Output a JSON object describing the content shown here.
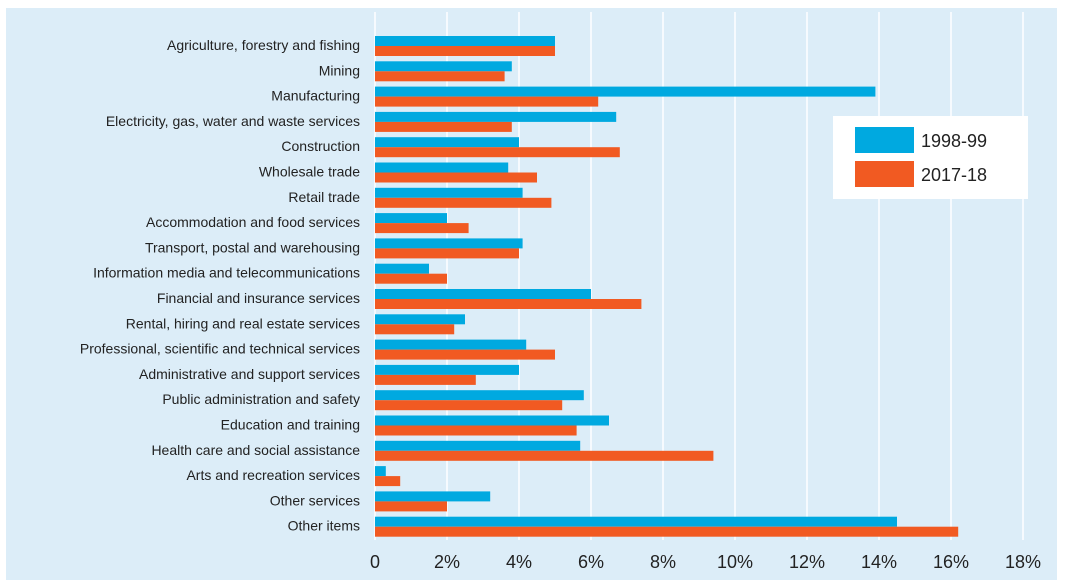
{
  "chart_data": {
    "type": "bar",
    "orientation": "horizontal",
    "categories": [
      "Agriculture, forestry and fishing",
      "Mining",
      "Manufacturing",
      "Electricity, gas, water and waste services",
      "Construction",
      "Wholesale trade",
      "Retail trade",
      "Accommodation and food services",
      "Transport, postal and warehousing",
      "Information media and telecommunications",
      "Financial and insurance services",
      "Rental, hiring and real estate services",
      "Professional, scientific and technical services",
      "Administrative and support services",
      "Public administration and safety",
      "Education and training",
      "Health care and social assistance",
      "Arts and recreation services",
      "Other services",
      "Other items"
    ],
    "series": [
      {
        "name": "1998-99",
        "color": "#00a9e0",
        "values": [
          5.0,
          3.8,
          13.9,
          6.7,
          4.0,
          3.7,
          4.1,
          2.0,
          4.1,
          1.5,
          6.0,
          2.5,
          4.2,
          4.0,
          5.8,
          6.5,
          5.7,
          0.3,
          3.2,
          14.5
        ]
      },
      {
        "name": "2017-18",
        "color": "#f15a22",
        "values": [
          5.0,
          3.6,
          6.2,
          3.8,
          6.8,
          4.5,
          4.9,
          2.6,
          4.0,
          2.0,
          7.4,
          2.2,
          5.0,
          2.8,
          5.2,
          5.6,
          9.4,
          0.7,
          2.0,
          16.2
        ]
      }
    ],
    "xlim": [
      0,
      18
    ],
    "xticks": [
      0,
      2,
      4,
      6,
      8,
      10,
      12,
      14,
      16,
      18
    ],
    "xtick_labels": [
      "0",
      "2%",
      "4%",
      "6%",
      "8%",
      "10%",
      "12%",
      "14%",
      "16%",
      "18%"
    ],
    "grid": "vertical",
    "legend_position": "top-right",
    "background_color": "#dcedf8",
    "title": "",
    "xlabel": "",
    "ylabel": ""
  }
}
